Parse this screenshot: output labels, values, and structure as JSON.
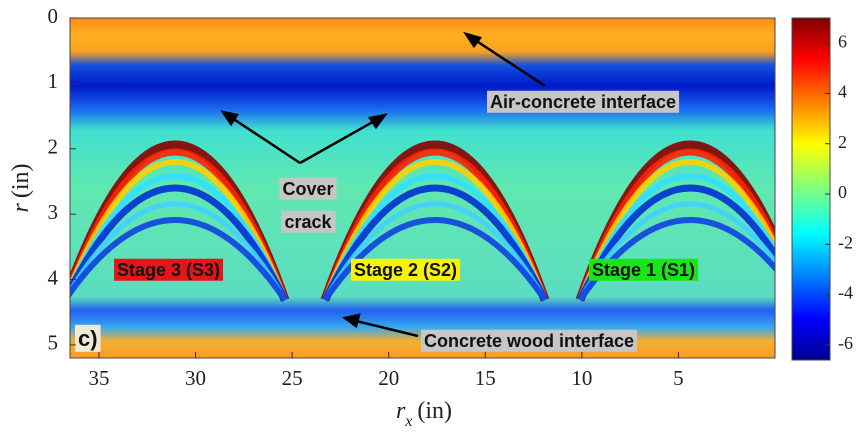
{
  "chart_data": {
    "type": "heatmap",
    "xlabel": {
      "symbol": "r",
      "subscript": "x",
      "unit": "(in)"
    },
    "ylabel": {
      "symbol": "r",
      "unit": "(in)"
    },
    "xlim": [
      36.5,
      0
    ],
    "xticks": [
      35,
      30,
      25,
      20,
      15,
      10,
      5
    ],
    "ylim": [
      0,
      5.2
    ],
    "yticks": [
      0,
      1,
      2,
      3,
      4,
      5
    ],
    "colorbar": {
      "lim": [
        -6.6,
        7
      ],
      "ticks": [
        6,
        4,
        2,
        0,
        -2,
        -4,
        -6
      ],
      "colormap": "jet"
    },
    "panel_label": "c)",
    "annotations": [
      {
        "text": "Air-concrete interface",
        "background": "#c6c6c6"
      },
      {
        "lines": [
          "Cover",
          "crack"
        ],
        "background": "#c6c6c6"
      },
      {
        "text": "Stage 3 (S3)",
        "background": "#e8141b"
      },
      {
        "text": "Stage 2 (S2)",
        "background": "#f6f20a"
      },
      {
        "text": "Stage 1 (S1)",
        "background": "#19e619"
      },
      {
        "text": "Concrete wood interface",
        "background": "#c6c6c6"
      }
    ]
  }
}
